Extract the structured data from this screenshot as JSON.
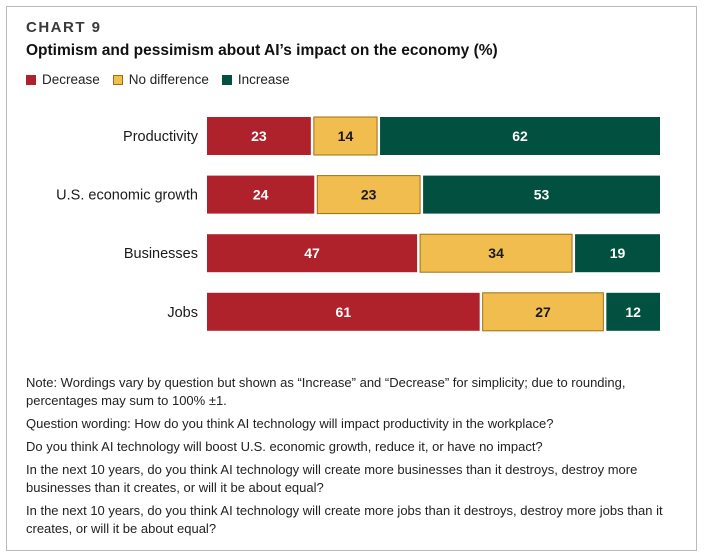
{
  "header": {
    "chart_label": "CHART 9",
    "title": "Optimism and pessimism about AI’s impact on the economy (%)"
  },
  "colors": {
    "decrease": "#b0222b",
    "no_difference": "#f2bd4f",
    "increase": "#02503f",
    "no_difference_border": "#9c6f10",
    "frame": "#b9b9b9"
  },
  "chart_data": {
    "type": "bar",
    "orientation": "horizontal",
    "stacked": true,
    "title": "Optimism and pessimism about AI’s impact on the economy (%)",
    "categories": [
      "Productivity",
      "U.S. economic growth",
      "Businesses",
      "Jobs"
    ],
    "series": [
      {
        "name": "Decrease",
        "key": "decrease",
        "values": [
          23,
          24,
          47,
          61
        ]
      },
      {
        "name": "No difference",
        "key": "no_difference",
        "values": [
          14,
          23,
          34,
          27
        ]
      },
      {
        "name": "Increase",
        "key": "increase",
        "values": [
          62,
          53,
          19,
          12
        ]
      }
    ],
    "xlabel": "",
    "ylabel": "",
    "grid": false,
    "legend_position": "top-left"
  },
  "notes": {
    "lines": [
      "Note: Wordings vary by question but shown as “Increase” and “Decrease” for simplicity; due to rounding, percentages may sum to 100% ±1.",
      "Question wording: How do you think AI technology will impact productivity in the workplace?",
      "Do you think AI technology will boost U.S. economic growth, reduce it, or have no impact?",
      "In the next 10 years, do you think AI technology will create more businesses than it destroys, destroy more businesses than it creates, or will it be about equal?",
      "In the next 10 years, do you think AI technology will create more jobs than it destroys, destroy more jobs than it creates, or will it be about equal?"
    ]
  }
}
